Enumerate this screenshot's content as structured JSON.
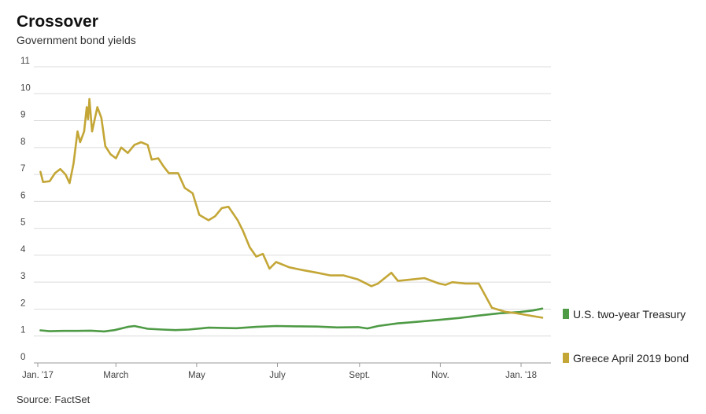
{
  "header": {
    "title": "Crossover",
    "subtitle": "Government bond yields"
  },
  "footer": {
    "source": "Source: FactSet"
  },
  "colors": {
    "greece": "#c3a636",
    "us": "#4e9a45",
    "grid": "#dcdcdc",
    "axis": "#999999"
  },
  "chart_data": {
    "type": "line",
    "title": "Crossover",
    "subtitle": "Government bond yields",
    "xlabel": "",
    "ylabel": "",
    "ylim": [
      0,
      11
    ],
    "xlim": [
      "2017-01-01",
      "2018-01-20"
    ],
    "yticks": [
      0,
      1,
      2,
      3,
      4,
      5,
      6,
      7,
      8,
      9,
      10,
      11
    ],
    "xticks": [
      {
        "label": "Jan. '17",
        "date": "2017-01-01"
      },
      {
        "label": "March",
        "date": "2017-03-01"
      },
      {
        "label": "May",
        "date": "2017-05-01"
      },
      {
        "label": "July",
        "date": "2017-07-01"
      },
      {
        "label": "Sept.",
        "date": "2017-09-01"
      },
      {
        "label": "Nov.",
        "date": "2017-11-01"
      },
      {
        "label": "Jan. '18",
        "date": "2018-01-01"
      }
    ],
    "grid": true,
    "legend": "right",
    "series": [
      {
        "name": "U.S. two-year Treasury",
        "color": "#4e9a45",
        "points": [
          [
            "2017-01-03",
            1.21
          ],
          [
            "2017-01-10",
            1.18
          ],
          [
            "2017-01-20",
            1.19
          ],
          [
            "2017-01-31",
            1.19
          ],
          [
            "2017-02-10",
            1.2
          ],
          [
            "2017-02-20",
            1.17
          ],
          [
            "2017-02-28",
            1.22
          ],
          [
            "2017-03-10",
            1.34
          ],
          [
            "2017-03-15",
            1.37
          ],
          [
            "2017-03-25",
            1.27
          ],
          [
            "2017-04-05",
            1.24
          ],
          [
            "2017-04-15",
            1.22
          ],
          [
            "2017-04-25",
            1.24
          ],
          [
            "2017-05-10",
            1.31
          ],
          [
            "2017-05-20",
            1.3
          ],
          [
            "2017-05-31",
            1.29
          ],
          [
            "2017-06-15",
            1.34
          ],
          [
            "2017-06-30",
            1.37
          ],
          [
            "2017-07-15",
            1.36
          ],
          [
            "2017-07-31",
            1.35
          ],
          [
            "2017-08-15",
            1.32
          ],
          [
            "2017-08-31",
            1.33
          ],
          [
            "2017-09-07",
            1.28
          ],
          [
            "2017-09-15",
            1.37
          ],
          [
            "2017-09-30",
            1.47
          ],
          [
            "2017-10-15",
            1.53
          ],
          [
            "2017-10-31",
            1.6
          ],
          [
            "2017-11-15",
            1.67
          ],
          [
            "2017-11-30",
            1.76
          ],
          [
            "2017-12-15",
            1.84
          ],
          [
            "2017-12-31",
            1.89
          ],
          [
            "2018-01-10",
            1.95
          ],
          [
            "2018-01-17",
            2.02
          ]
        ]
      },
      {
        "name": "Greece April 2019 bond",
        "color": "#c3a636",
        "points": [
          [
            "2017-01-03",
            7.1
          ],
          [
            "2017-01-05",
            6.72
          ],
          [
            "2017-01-10",
            6.75
          ],
          [
            "2017-01-14",
            7.05
          ],
          [
            "2017-01-18",
            7.2
          ],
          [
            "2017-01-22",
            7.0
          ],
          [
            "2017-01-25",
            6.68
          ],
          [
            "2017-01-28",
            7.4
          ],
          [
            "2017-01-31",
            8.6
          ],
          [
            "2017-02-02",
            8.2
          ],
          [
            "2017-02-05",
            8.6
          ],
          [
            "2017-02-07",
            9.5
          ],
          [
            "2017-02-08",
            9.05
          ],
          [
            "2017-02-09",
            9.8
          ],
          [
            "2017-02-11",
            8.6
          ],
          [
            "2017-02-15",
            9.5
          ],
          [
            "2017-02-18",
            9.1
          ],
          [
            "2017-02-21",
            8.05
          ],
          [
            "2017-02-25",
            7.75
          ],
          [
            "2017-03-01",
            7.6
          ],
          [
            "2017-03-05",
            8.0
          ],
          [
            "2017-03-10",
            7.8
          ],
          [
            "2017-03-15",
            8.1
          ],
          [
            "2017-03-20",
            8.2
          ],
          [
            "2017-03-25",
            8.1
          ],
          [
            "2017-03-28",
            7.55
          ],
          [
            "2017-04-02",
            7.6
          ],
          [
            "2017-04-06",
            7.3
          ],
          [
            "2017-04-10",
            7.05
          ],
          [
            "2017-04-17",
            7.05
          ],
          [
            "2017-04-22",
            6.5
          ],
          [
            "2017-04-28",
            6.3
          ],
          [
            "2017-05-03",
            5.5
          ],
          [
            "2017-05-10",
            5.3
          ],
          [
            "2017-05-15",
            5.45
          ],
          [
            "2017-05-20",
            5.75
          ],
          [
            "2017-05-25",
            5.8
          ],
          [
            "2017-06-01",
            5.3
          ],
          [
            "2017-06-05",
            4.9
          ],
          [
            "2017-06-10",
            4.3
          ],
          [
            "2017-06-15",
            3.95
          ],
          [
            "2017-06-20",
            4.05
          ],
          [
            "2017-06-25",
            3.5
          ],
          [
            "2017-06-30",
            3.75
          ],
          [
            "2017-07-10",
            3.55
          ],
          [
            "2017-07-20",
            3.45
          ],
          [
            "2017-07-31",
            3.35
          ],
          [
            "2017-08-10",
            3.25
          ],
          [
            "2017-08-20",
            3.25
          ],
          [
            "2017-08-31",
            3.1
          ],
          [
            "2017-09-10",
            2.85
          ],
          [
            "2017-09-15",
            2.95
          ],
          [
            "2017-09-25",
            3.35
          ],
          [
            "2017-09-30",
            3.05
          ],
          [
            "2017-10-10",
            3.1
          ],
          [
            "2017-10-20",
            3.15
          ],
          [
            "2017-10-31",
            2.95
          ],
          [
            "2017-11-05",
            2.9
          ],
          [
            "2017-11-10",
            3.0
          ],
          [
            "2017-11-20",
            2.95
          ],
          [
            "2017-11-30",
            2.95
          ],
          [
            "2017-12-05",
            2.5
          ],
          [
            "2017-12-10",
            2.05
          ],
          [
            "2017-12-20",
            1.9
          ],
          [
            "2017-12-28",
            1.85
          ],
          [
            "2018-01-05",
            1.78
          ],
          [
            "2018-01-17",
            1.68
          ]
        ]
      }
    ]
  }
}
